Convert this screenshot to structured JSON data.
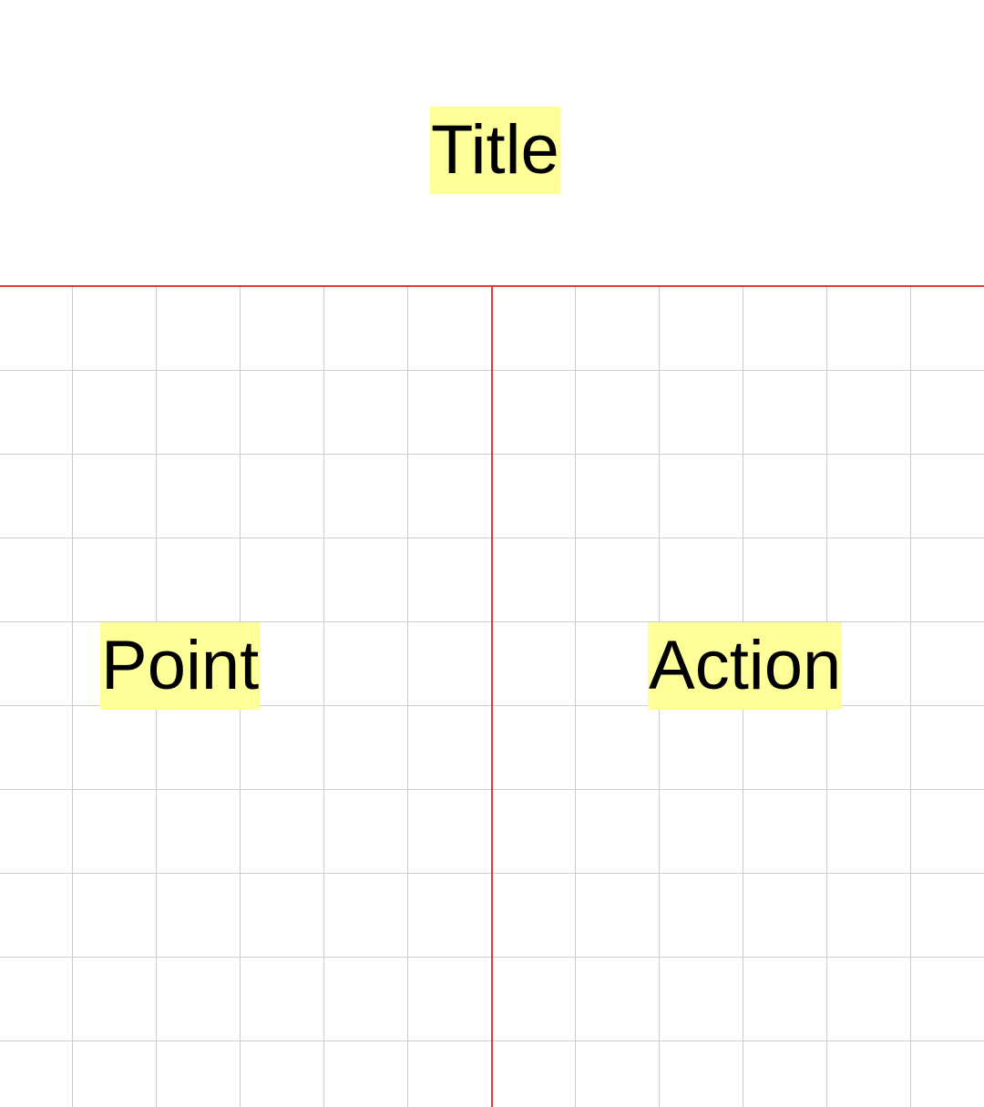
{
  "header": {
    "title": "Title"
  },
  "columns": {
    "left": {
      "label": "Point"
    },
    "right": {
      "label": "Action"
    }
  },
  "colors": {
    "highlight": "#ffff99",
    "divider": "#e23a3a",
    "grid": "#cccccc",
    "background": "#ffffff"
  }
}
